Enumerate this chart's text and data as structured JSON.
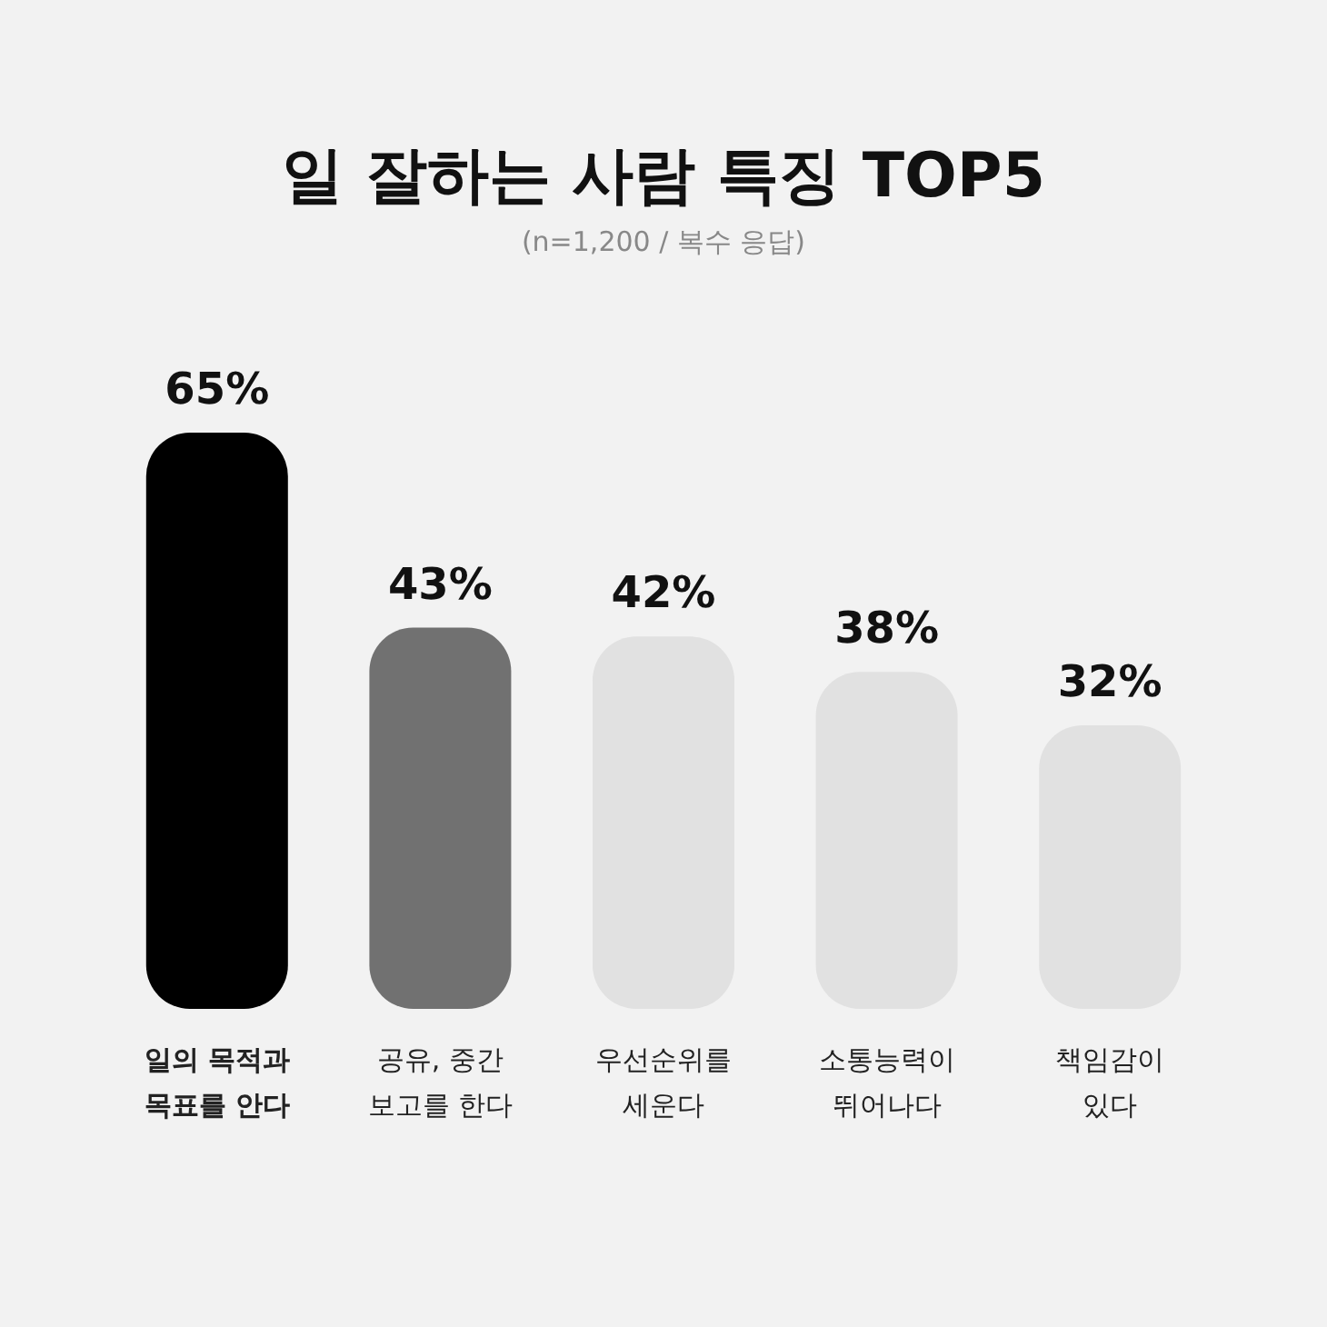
{
  "chart_data": {
    "type": "bar",
    "title": "일 잘하는 사람 특징 TOP5",
    "subtitle": "(n=1,200 / 복수 응답)",
    "categories": [
      "일의 목적과 목표를 안다",
      "공유, 중간 보고를 한다",
      "우선순위를 세운다",
      "소통능력이 뛰어나다",
      "책임감이 있다"
    ],
    "values": [
      65,
      43,
      42,
      38,
      32
    ],
    "value_labels": [
      "65%",
      "43%",
      "42%",
      "38%",
      "32%"
    ],
    "colors": [
      "#000000",
      "#717171",
      "#e1e1e1",
      "#e1e1e1",
      "#e1e1e1"
    ]
  }
}
